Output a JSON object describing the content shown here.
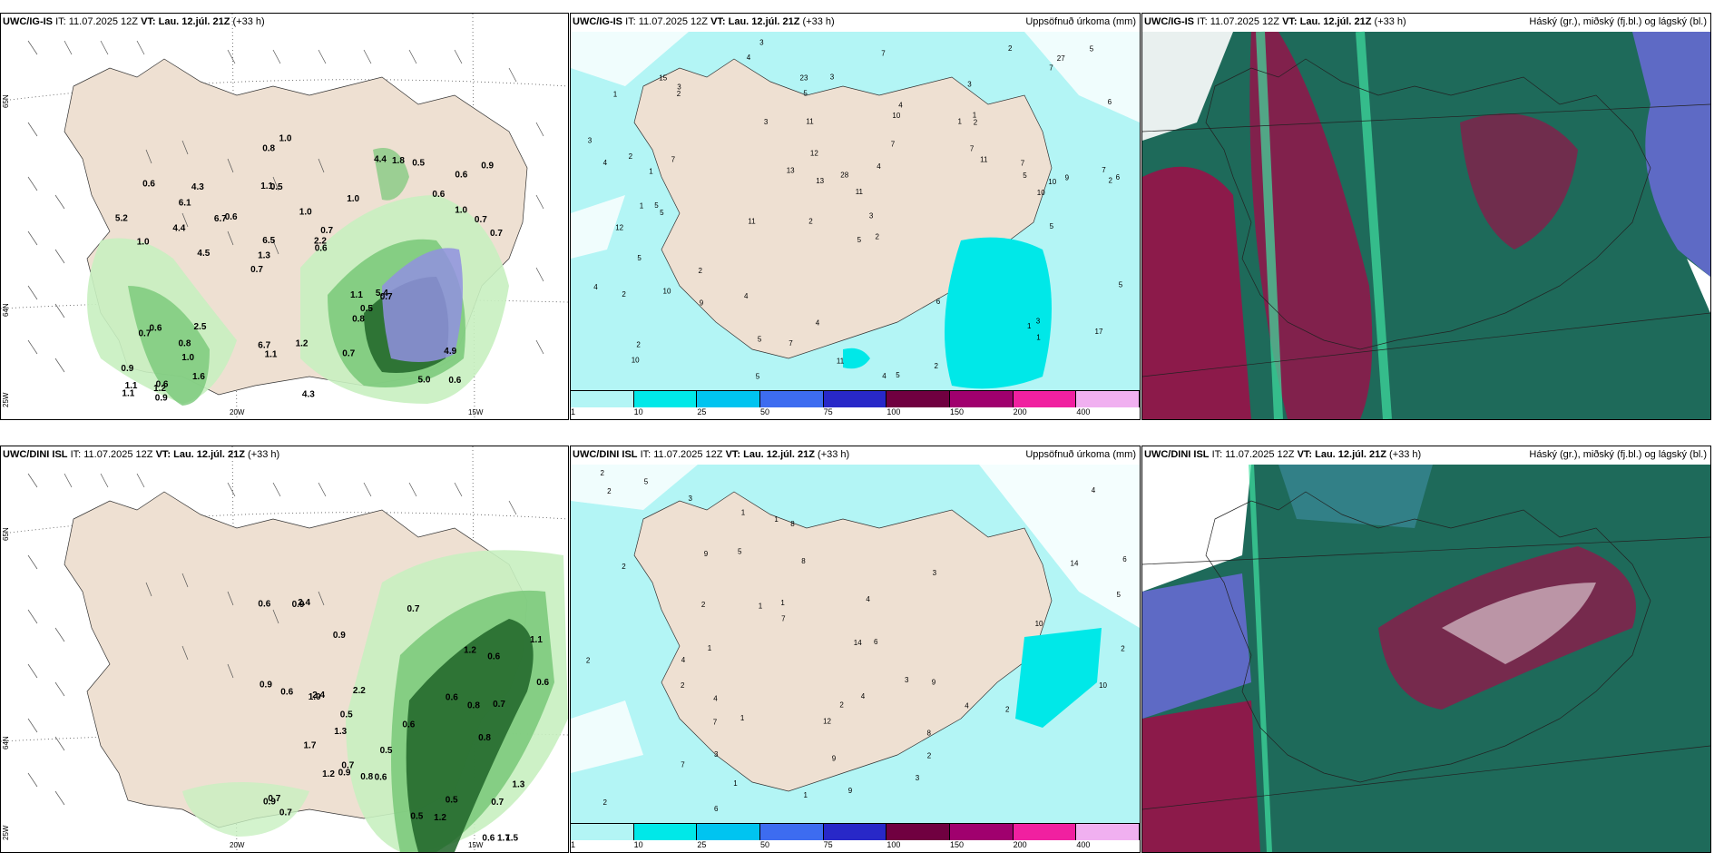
{
  "rows": [
    {
      "model": "UWC/IG-IS",
      "it_label": "IT:",
      "it_value": "11.07.2025 12Z",
      "vt_label": "VT:",
      "vt_value": "Lau. 12.júl. 21Z",
      "lead": "(+33 h)",
      "precip_title": "Uppsöfnuð úrkoma (mm)",
      "cloud_title": "Háský (gr.), miðský (fj.bl.) og lágský (bl.)",
      "wind_values": [
        "0.6",
        "1.0",
        "0.6",
        "0.7",
        "1.0",
        "0.6",
        "1.1",
        "1.0",
        "0.6",
        "0.6",
        "0.9",
        "1.0",
        "0.5",
        "0.7",
        "0.7",
        "0.6",
        "0.8",
        "0.7",
        "1.1",
        "1.0",
        "1.3",
        "6.7",
        "6.5",
        "4.3",
        "4.4",
        "2.5",
        "5.0",
        "4.9",
        "5.4",
        "4.3",
        "6.7",
        "4.4",
        "0.8",
        "1.6",
        "0.7",
        "2.2",
        "1.1",
        "1.1",
        "0.6",
        "0.7",
        "0.6",
        "0.9",
        "0.5",
        "0.7",
        "0.8",
        "0.9",
        "1.1",
        "1.2",
        "0.5",
        "1.0",
        "4.5",
        "5.2",
        "6.1",
        "1.8",
        "1.2"
      ],
      "precip_values": [
        "3",
        "3",
        "2",
        "2",
        "2",
        "5",
        "1",
        "1",
        "12",
        "10",
        "11",
        "10",
        "4",
        "11",
        "4",
        "5",
        "4",
        "2",
        "11",
        "2",
        "1",
        "1",
        "6",
        "9",
        "4",
        "2",
        "13",
        "5",
        "3",
        "2",
        "1",
        "4",
        "10",
        "13",
        "6",
        "5",
        "7",
        "7",
        "5",
        "3",
        "2",
        "5",
        "2",
        "15",
        "11",
        "2",
        "1",
        "1",
        "3",
        "3",
        "5",
        "10",
        "4",
        "7",
        "7",
        "9",
        "12",
        "28",
        "27",
        "11",
        "17",
        "5",
        "3",
        "4",
        "5",
        "4",
        "10",
        "5",
        "3",
        "6",
        "5",
        "23",
        "7",
        "7",
        "7",
        "7",
        "5",
        "2"
      ],
      "wind_axis": {
        "lat_top": "65N",
        "lat_mid": "64N",
        "lat_bot": "25W",
        "lon_a": "20W",
        "lon_b": "15W"
      }
    },
    {
      "model": "UWC/DINI ISL",
      "it_label": "IT:",
      "it_value": "11.07.2025 12Z",
      "vt_label": "VT:",
      "vt_value": "Lau. 12.júl. 21Z",
      "lead": "(+33 h)",
      "precip_title": "Uppsöfnuð úrkoma (mm)",
      "cloud_title": "Háský (gr.), miðský (fj.bl.) og lágský (bl.)",
      "wind_values": [
        "0.5",
        "1.0",
        "0.9",
        "0.8",
        "1.5",
        "0.9",
        "0.6",
        "1.3",
        "0.9",
        "0.8",
        "0.7",
        "0.7",
        "0.6",
        "0.6",
        "0.5",
        "0.5",
        "0.6",
        "0.6",
        "1.1",
        "2.2",
        "1.7",
        "2.4",
        "1.2",
        "1.2",
        "0.7",
        "0.6",
        "0.5",
        "0.7",
        "0.6",
        "0.9",
        "0.7",
        "0.8",
        "0.7",
        "1.3",
        "1.2",
        "0.9",
        "0.6",
        "2.4",
        "1.7"
      ],
      "precip_values": [
        "2",
        "2",
        "2",
        "4",
        "6",
        "8",
        "8",
        "1",
        "2",
        "4",
        "7",
        "6",
        "6",
        "2",
        "2",
        "1",
        "12",
        "7",
        "5",
        "1",
        "5",
        "9",
        "1",
        "1",
        "4",
        "4",
        "4",
        "2",
        "1",
        "1",
        "3",
        "1",
        "14",
        "10",
        "14",
        "2",
        "3",
        "7",
        "2",
        "3",
        "9",
        "9",
        "9",
        "8",
        "5",
        "4",
        "3",
        "10",
        "3",
        "2",
        "2"
      ],
      "wind_axis": {
        "lat_top": "65N",
        "lat_mid": "64N",
        "lat_bot": "25W",
        "lon_a": "20W",
        "lon_b": "15W"
      }
    }
  ],
  "colorbar": {
    "ticks": [
      "1",
      "10",
      "25",
      "50",
      "75",
      "100",
      "150",
      "200",
      "400"
    ],
    "colors": [
      "#b3f5f5",
      "#00e8e8",
      "#00c4f0",
      "#3d6cf0",
      "#2828c8",
      "#700040",
      "#a0006e",
      "#f020a0",
      "#f0b0f0"
    ]
  },
  "colors": {
    "land": "#eee0d2",
    "sea_precip": "#b3f5f5",
    "green_light": "#c8f0c0",
    "green_mid": "#78c878",
    "green_dark": "#1e6428",
    "purple": "#9090e0",
    "cloud_high": "#8c1a4a",
    "cloud_mid": "#1e6a5a",
    "cloud_low": "#6a6ad8"
  }
}
